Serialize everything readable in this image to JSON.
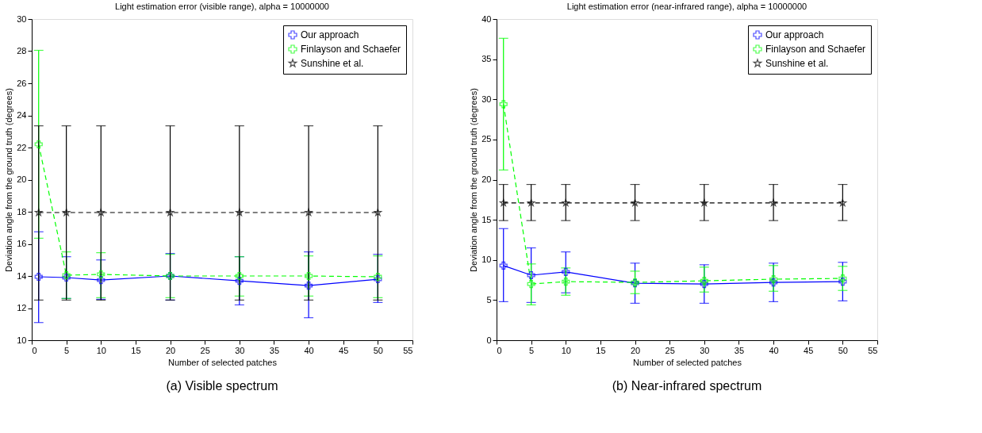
{
  "chart_data": [
    {
      "type": "line",
      "title": "Light estimation error (visible range), alpha = 10000000",
      "xlabel": "Number of selected patches",
      "ylabel": "Deviation angle from the ground truth (degrees)",
      "annotations": [
        "(a)  Visible spectrum"
      ],
      "x": [
        1,
        5,
        10,
        20,
        30,
        40,
        50
      ],
      "xlim": [
        0,
        55
      ],
      "xticks": [
        0,
        5,
        10,
        15,
        20,
        25,
        30,
        35,
        40,
        45,
        50,
        55
      ],
      "ylim": [
        10,
        30
      ],
      "yticks": [
        10,
        12,
        14,
        16,
        18,
        20,
        22,
        24,
        26,
        28,
        30
      ],
      "grid": false,
      "legend": "top right",
      "series": [
        {
          "name": "Our approach",
          "color": "#0000ff",
          "marker": "cross",
          "line_style": "solid",
          "values": [
            13.95,
            13.9,
            13.75,
            14.0,
            13.7,
            13.4,
            13.8
          ],
          "errors": [
            [
              11.1,
              16.75
            ],
            [
              12.6,
              15.2
            ],
            [
              12.55,
              15.0
            ],
            [
              12.5,
              15.4
            ],
            [
              12.2,
              15.2
            ],
            [
              11.4,
              15.5
            ],
            [
              12.35,
              15.35
            ]
          ]
        },
        {
          "name": "Finlayson and Schaefer",
          "color": "#00ff00",
          "marker": "cross",
          "line_style": "dashed",
          "values": [
            22.2,
            14.05,
            14.1,
            14.0,
            14.0,
            14.0,
            13.95
          ],
          "errors": [
            [
              16.35,
              28.05
            ],
            [
              12.6,
              15.5
            ],
            [
              12.65,
              15.45
            ],
            [
              12.65,
              15.35
            ],
            [
              12.75,
              15.2
            ],
            [
              12.75,
              15.25
            ],
            [
              12.65,
              15.25
            ]
          ]
        },
        {
          "name": "Sunshine et al.",
          "color": "#000000",
          "marker": "star",
          "line_style": "dashed",
          "values": [
            17.95,
            17.95,
            17.95,
            17.95,
            17.95,
            17.95,
            17.95
          ],
          "errors": [
            [
              12.5,
              23.35
            ],
            [
              12.5,
              23.35
            ],
            [
              12.5,
              23.35
            ],
            [
              12.5,
              23.35
            ],
            [
              12.5,
              23.35
            ],
            [
              12.5,
              23.35
            ],
            [
              12.5,
              23.35
            ]
          ]
        }
      ]
    },
    {
      "type": "line",
      "title": "Light estimation error (near-infrared range), alpha = 10000000",
      "xlabel": "Number of selected patches",
      "ylabel": "Deviation angle from the ground truth (degrees)",
      "annotations": [
        "(b)  Near-infrared spectrum"
      ],
      "x": [
        1,
        5,
        10,
        20,
        30,
        40,
        50
      ],
      "xlim": [
        0,
        55
      ],
      "xticks": [
        0,
        5,
        10,
        15,
        20,
        25,
        30,
        35,
        40,
        45,
        50,
        55
      ],
      "ylim": [
        0,
        40
      ],
      "yticks": [
        0,
        5,
        10,
        15,
        20,
        25,
        30,
        35,
        40
      ],
      "grid": false,
      "legend": "top right",
      "series": [
        {
          "name": "Our approach",
          "color": "#0000ff",
          "marker": "cross",
          "line_style": "solid",
          "values": [
            9.3,
            8.1,
            8.5,
            7.1,
            7.0,
            7.2,
            7.3
          ],
          "errors": [
            [
              4.8,
              13.9
            ],
            [
              4.7,
              11.5
            ],
            [
              5.9,
              11.0
            ],
            [
              4.6,
              9.6
            ],
            [
              4.6,
              9.4
            ],
            [
              4.8,
              9.6
            ],
            [
              4.9,
              9.7
            ]
          ]
        },
        {
          "name": "Finlayson and Schaefer",
          "color": "#00ff00",
          "marker": "cross",
          "line_style": "dashed",
          "values": [
            29.4,
            7.0,
            7.3,
            7.2,
            7.4,
            7.6,
            7.7
          ],
          "errors": [
            [
              21.2,
              37.6
            ],
            [
              4.4,
              9.5
            ],
            [
              5.6,
              9.0
            ],
            [
              5.8,
              8.6
            ],
            [
              6.0,
              9.1
            ],
            [
              6.1,
              9.3
            ],
            [
              6.2,
              9.2
            ]
          ]
        },
        {
          "name": "Sunshine et al.",
          "color": "#000000",
          "marker": "star",
          "line_style": "dashed",
          "values": [
            17.1,
            17.1,
            17.1,
            17.1,
            17.1,
            17.1,
            17.1
          ],
          "errors": [
            [
              14.9,
              19.4
            ],
            [
              14.9,
              19.4
            ],
            [
              14.9,
              19.4
            ],
            [
              14.9,
              19.4
            ],
            [
              14.9,
              19.4
            ],
            [
              14.9,
              19.4
            ],
            [
              14.9,
              19.4
            ]
          ]
        }
      ]
    }
  ]
}
